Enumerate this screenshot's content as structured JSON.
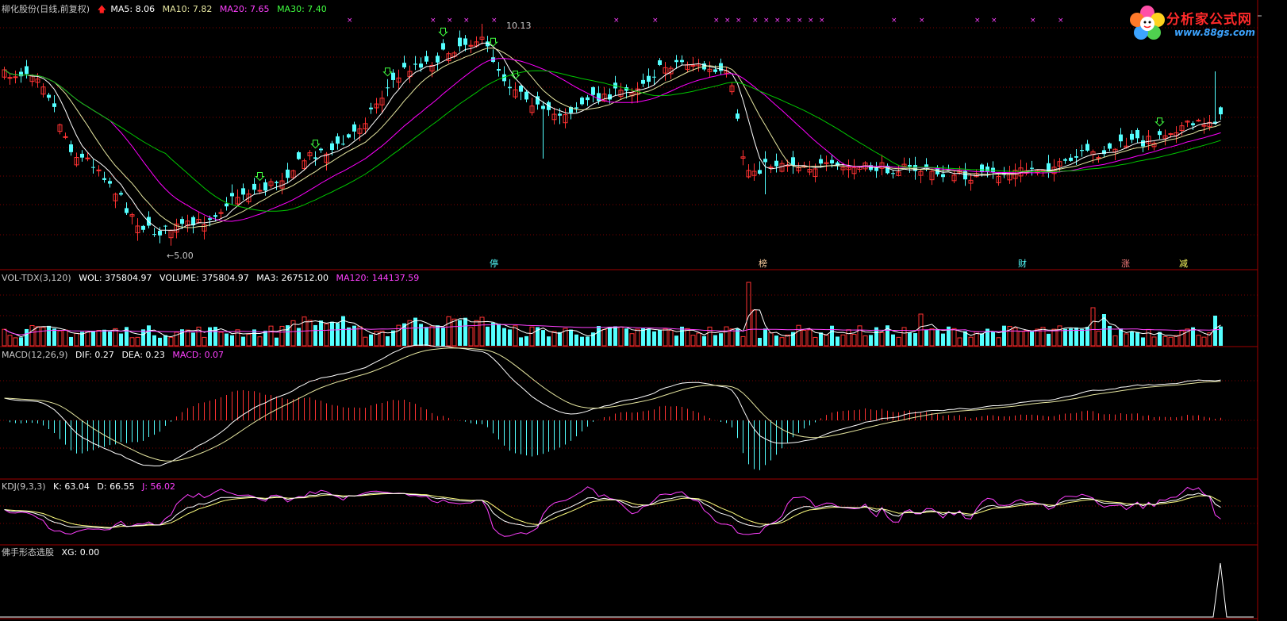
{
  "main_header": {
    "name": "柳化股份(日线,前复权)",
    "ma5": "MA5: 8.06",
    "ma10": "MA10: 7.82",
    "ma20": "MA20: 7.65",
    "ma30": "MA30: 7.40"
  },
  "vol_header": {
    "name": "VOL-TDX(3,120)",
    "wol": "WOL: 375804.97",
    "volume": "VOLUME: 375804.97",
    "ma3": "MA3: 267512.00",
    "ma120": "MA120: 144137.59"
  },
  "macd_header": {
    "name": "MACD(12,26,9)",
    "dif": "DIF: 0.27",
    "dea": "DEA: 0.23",
    "macd": "MACD: 0.07"
  },
  "kdj_header": {
    "name": "KDJ(9,3,3)",
    "k": "K: 63.04",
    "d": "D: 66.55",
    "j": "J: 56.02"
  },
  "xg_header": {
    "name": "佛手形态选股",
    "xg": "XG: 0.00"
  },
  "annotations": {
    "high_price": "10.13",
    "low_price": "5.00",
    "low_arrow": "←",
    "marker_1": "停",
    "marker_2": "榜",
    "marker_3": "财",
    "marker_4": "涨",
    "marker_5": "减"
  },
  "logo": {
    "title": "分析家公式网",
    "url": "www.88gs.com"
  },
  "colors": {
    "up": "#ff3232",
    "down": "#54ffff",
    "ma5": "#ffffff",
    "ma10": "#e6e6a0",
    "ma20": "#ff00ff",
    "ma30": "#00c800",
    "separator": "#a00000",
    "grid": "#800000",
    "kdj_k": "#ffffff",
    "kdj_d": "#ffff80",
    "kdj_j": "#ff40ff"
  },
  "chart_data": {
    "type": "candlestick",
    "price_range": [
      4.8,
      10.4
    ],
    "low_value": 5.0,
    "high_value": 10.13,
    "grid": true
  }
}
